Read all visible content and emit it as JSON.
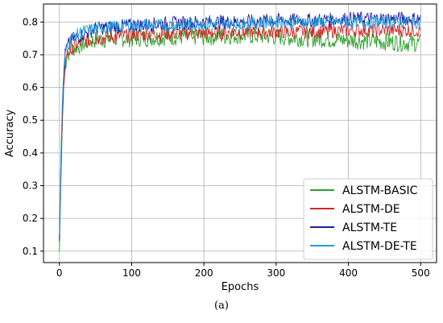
{
  "chart_data": {
    "type": "line",
    "xlabel": "Epochs",
    "ylabel": "Accuracy",
    "xlim": [
      -22,
      522
    ],
    "ylim": [
      0.065,
      0.855
    ],
    "xticks": [
      0,
      100,
      200,
      300,
      400,
      500
    ],
    "yticks": [
      0.1,
      0.2,
      0.3,
      0.4,
      0.5,
      0.6,
      0.7,
      0.8
    ],
    "grid": true,
    "legend_position": "lower-right",
    "x": [
      0,
      2,
      4,
      6,
      8,
      10,
      15,
      20,
      30,
      40,
      50,
      75,
      100,
      150,
      200,
      250,
      300,
      350,
      400,
      450,
      500
    ],
    "series": [
      {
        "name": "ALSTM-BASIC",
        "color": "#2ca02c",
        "values": [
          0.1,
          0.3,
          0.48,
          0.6,
          0.66,
          0.7,
          0.71,
          0.72,
          0.73,
          0.74,
          0.745,
          0.75,
          0.75,
          0.755,
          0.755,
          0.76,
          0.755,
          0.75,
          0.745,
          0.74,
          0.735
        ]
      },
      {
        "name": "ALSTM-DE",
        "color": "#d62728",
        "values": [
          0.14,
          0.34,
          0.5,
          0.61,
          0.67,
          0.7,
          0.715,
          0.725,
          0.735,
          0.745,
          0.75,
          0.755,
          0.76,
          0.765,
          0.765,
          0.77,
          0.77,
          0.77,
          0.775,
          0.775,
          0.775
        ]
      },
      {
        "name": "ALSTM-TE",
        "color": "#1f1f9f",
        "values": [
          0.13,
          0.36,
          0.53,
          0.64,
          0.7,
          0.72,
          0.74,
          0.75,
          0.76,
          0.77,
          0.78,
          0.785,
          0.79,
          0.795,
          0.8,
          0.8,
          0.805,
          0.805,
          0.81,
          0.81,
          0.81
        ]
      },
      {
        "name": "ALSTM-DE-TE",
        "color": "#1f9fdf",
        "values": [
          0.15,
          0.38,
          0.55,
          0.65,
          0.7,
          0.725,
          0.745,
          0.755,
          0.77,
          0.775,
          0.78,
          0.785,
          0.79,
          0.79,
          0.795,
          0.795,
          0.8,
          0.8,
          0.8,
          0.8,
          0.8
        ]
      }
    ],
    "caption": "(a)"
  }
}
